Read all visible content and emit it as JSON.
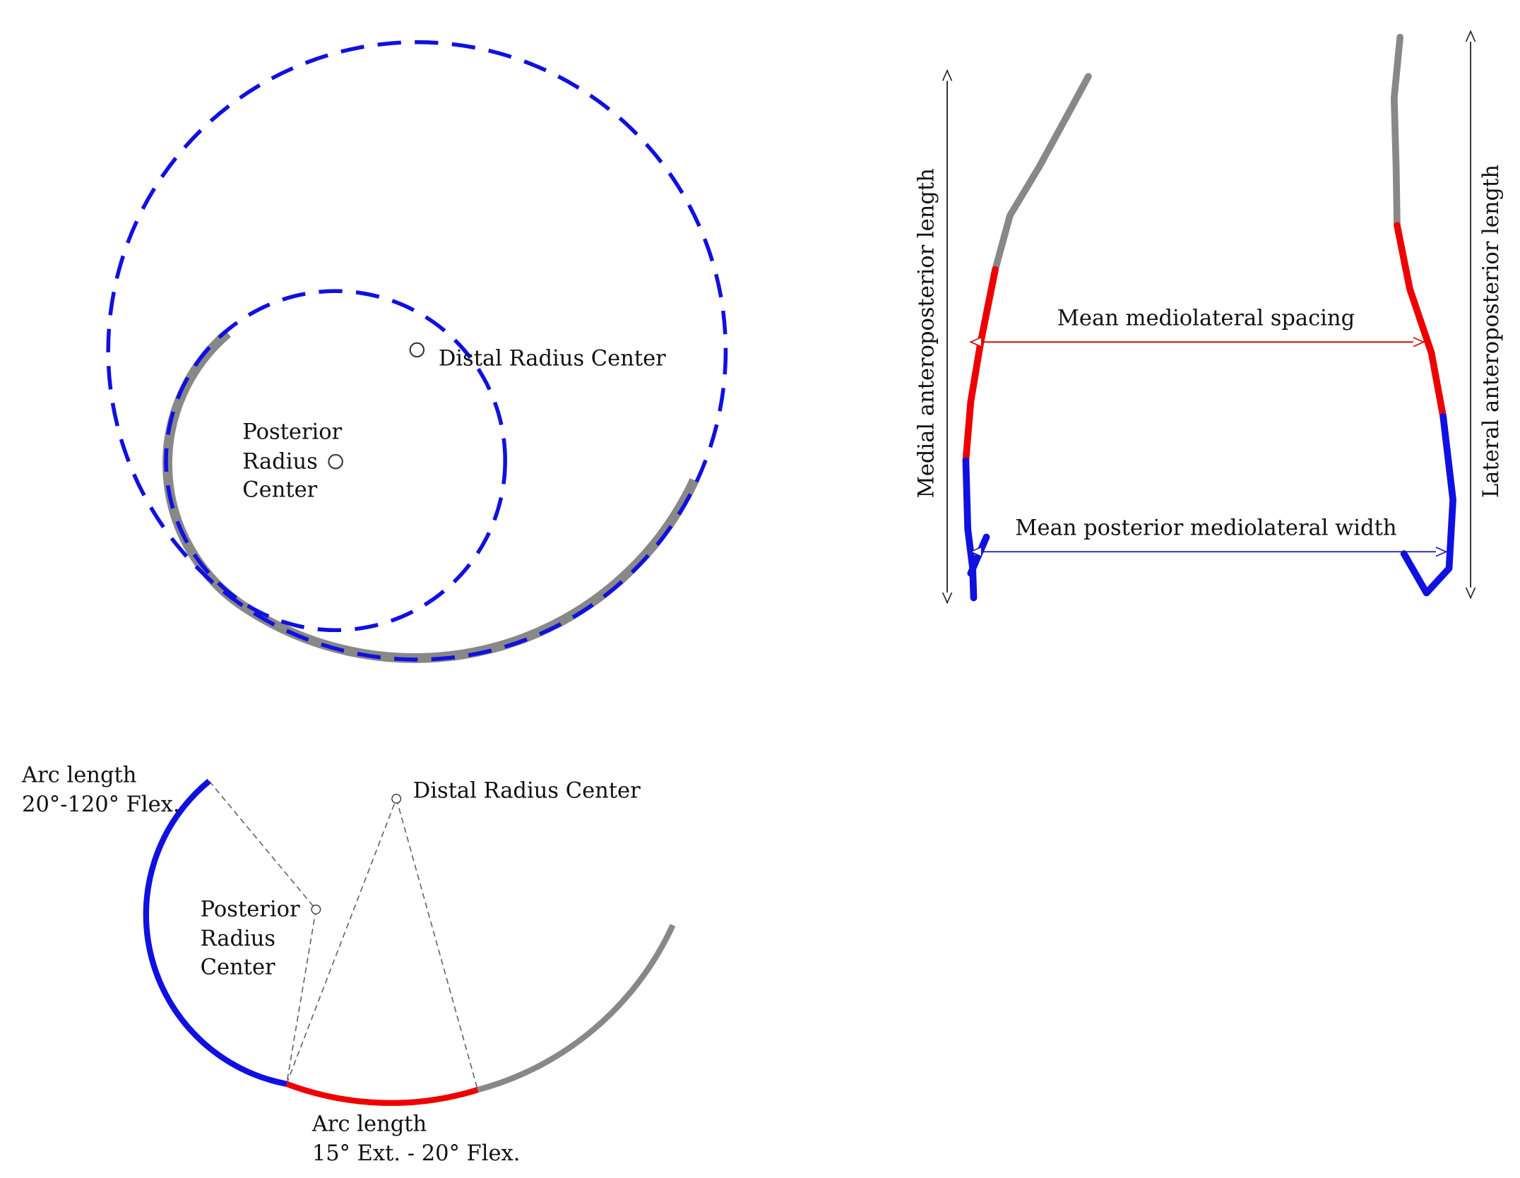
{
  "top_left": {
    "distal_label": "Distal Radius Center",
    "posterior_label": [
      "Posterior",
      "Radius",
      "Center"
    ]
  },
  "bottom_left": {
    "arc_upper_label": [
      "Arc length",
      "20°-120° Flex."
    ],
    "distal_label": "Distal Radius Center",
    "posterior_label": [
      "Posterior",
      "Radius",
      "Center"
    ],
    "arc_lower_label": [
      "Arc length",
      "15° Ext. - 20° Flex."
    ]
  },
  "right": {
    "medial_label": "Medial anteroposterior length",
    "lateral_label": "Lateral anteroposterior length",
    "spacing_label": "Mean mediolateral spacing",
    "width_label": "Mean posterior mediolateral width"
  }
}
